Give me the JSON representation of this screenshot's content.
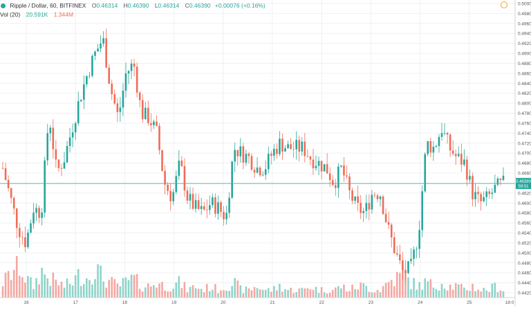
{
  "header": {
    "symbol": "Ripple / Dollar, 60, BITFINEX",
    "o_label": "O",
    "o_value": "0.46314",
    "h_label": "H",
    "h_value": "0.46390",
    "l_label": "L",
    "l_value": "0.46314",
    "c_label": "C",
    "c_value": "0.46390",
    "change": "+0.00076 (+0.16%)",
    "vol_label": "Vol (20)",
    "vol_value": "20.591K",
    "vol_ma_value": "1.344M"
  },
  "colors": {
    "up": "#26a69a",
    "down": "#ef6c57",
    "up_volume": "#8fd3c9",
    "down_volume": "#f4a7a1",
    "price_line": "#4db6ac",
    "grid": "#eef0f3"
  },
  "price_tag": {
    "price": "0.46390",
    "countdown": "59:51"
  },
  "chart_data": {
    "type": "candlestick",
    "title": "Ripple / Dollar, 60, BITFINEX",
    "y_axis_position": "right",
    "ylim": [
      0.442,
      0.5
    ],
    "y_ticks": [
      "0.50000",
      "0.49800",
      "0.49600",
      "0.49400",
      "0.49200",
      "0.49000",
      "0.48800",
      "0.48600",
      "0.48400",
      "0.48200",
      "0.48000",
      "0.47800",
      "0.47600",
      "0.47400",
      "0.47200",
      "0.47000",
      "0.46800",
      "0.46600",
      "0.46400",
      "0.46200",
      "0.46000",
      "0.45800",
      "0.45600",
      "0.45400",
      "0.45200",
      "0.45000",
      "0.44800",
      "0.44600",
      "0.44400",
      "0.44200"
    ],
    "x_ticks": [
      "16",
      "17",
      "18",
      "19",
      "20",
      "21",
      "22",
      "23",
      "24",
      "25",
      "18:0"
    ],
    "last_price": 0.4639,
    "ohlc_close_path": [
      0.467,
      0.461,
      0.455,
      0.452,
      0.459,
      0.458,
      0.478,
      0.466,
      0.469,
      0.475,
      0.481,
      0.486,
      0.49,
      0.493,
      0.483,
      0.477,
      0.486,
      0.488,
      0.478,
      0.477,
      0.474,
      0.464,
      0.461,
      0.468,
      0.461,
      0.459,
      0.458,
      0.46,
      0.459,
      0.457,
      0.471,
      0.47,
      0.469,
      0.467,
      0.467,
      0.47,
      0.472,
      0.471,
      0.471,
      0.471,
      0.469,
      0.468,
      0.467,
      0.464,
      0.467,
      0.462,
      0.459,
      0.458,
      0.462,
      0.462,
      0.455,
      0.45,
      0.446,
      0.447,
      0.454,
      0.472,
      0.471,
      0.475,
      0.471,
      0.469,
      0.468,
      0.462,
      0.46,
      0.461,
      0.463,
      0.4639
    ],
    "volume_relative": [
      0.4,
      0.6,
      0.9,
      0.5,
      0.3,
      0.7,
      0.5,
      0.4,
      0.3,
      0.4,
      0.6,
      0.5,
      0.8,
      0.5,
      0.4,
      0.3,
      0.4,
      0.5,
      0.3,
      0.3,
      0.4,
      0.3,
      0.3,
      0.4,
      0.2,
      0.3,
      0.2,
      0.3,
      0.2,
      0.3,
      0.4,
      0.2,
      0.2,
      0.3,
      0.2,
      0.2,
      0.3,
      0.2,
      0.2,
      0.2,
      0.3,
      0.2,
      0.2,
      0.2,
      0.3,
      0.2,
      0.3,
      0.3,
      0.2,
      0.2,
      0.4,
      0.5,
      0.6,
      0.4,
      0.3,
      0.4,
      0.3,
      0.4,
      0.3,
      0.3,
      0.2,
      0.3,
      0.2,
      0.2,
      0.3,
      0.2
    ]
  }
}
